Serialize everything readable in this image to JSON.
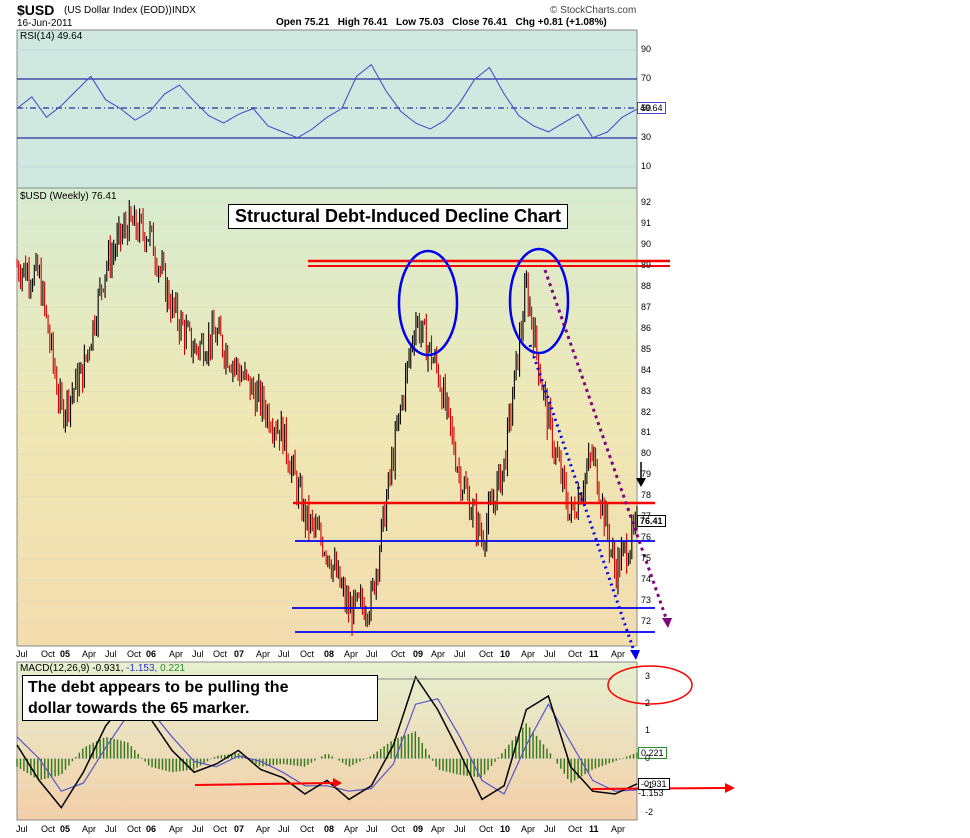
{
  "header": {
    "symbol": "$USD",
    "name": "(US Dollar Index (EOD))",
    "exchange": "INDX",
    "date": "16-Jun-2011",
    "ohlc": "Open 75.21   High 76.41   Low 75.03   Close 76.41   Chg +0.81 (+1.08%)",
    "brand": "© StockCharts.com"
  },
  "rsi_panel": {
    "label": "RSI(14) 49.64",
    "value_box": "49.64",
    "ticks": [
      "90",
      "70",
      "50",
      "30",
      "10"
    ]
  },
  "price_panel": {
    "label": "$USD (Weekly) 76.41",
    "title": "Structural Debt-Induced Decline Chart",
    "price_box": "76.41",
    "ticks": [
      "92",
      "91",
      "90",
      "89",
      "88",
      "87",
      "86",
      "85",
      "84",
      "83",
      "82",
      "81",
      "80",
      "79",
      "78",
      "77",
      "76",
      "75",
      "74",
      "73",
      "72"
    ]
  },
  "macd_panel": {
    "label": "MACD(12,26,9) -0.931, -1.153, 0.221",
    "label_parts": [
      "MACD(12,26,9)",
      "-0.931,",
      "-1.153,",
      "0.221"
    ],
    "callout_line1": "The debt appears to be pulling the",
    "callout_line2": "dollar towards the 65 marker.",
    "ticks": [
      "3",
      "2",
      "1",
      "0",
      "-1",
      "-2"
    ],
    "value_boxes": [
      "0.221",
      "-0.931",
      "-1.153"
    ]
  },
  "x_axis": [
    "Jul",
    "Oct",
    "05",
    "Apr",
    "Jul",
    "Oct",
    "06",
    "Apr",
    "Jul",
    "Oct",
    "07",
    "Apr",
    "Jul",
    "Oct",
    "08",
    "Apr",
    "Jul",
    "Oct",
    "09",
    "Apr",
    "Jul",
    "Oct",
    "10",
    "Apr",
    "Jul",
    "Oct",
    "11",
    "Apr"
  ],
  "colors": {
    "rsi_bg": "#cfe8e0",
    "panel_bg": "#efe6b8",
    "red": "#ff0000",
    "blue": "#0000ee",
    "purple": "#800080",
    "rsi_line": "#4444cc"
  },
  "chart_data": [
    {
      "type": "line",
      "title": "RSI(14)",
      "ylim": [
        0,
        100
      ],
      "reference_lines": [
        70,
        50,
        30
      ],
      "series": [
        {
          "name": "RSI(14)",
          "values": [
            50,
            58,
            44,
            52,
            62,
            72,
            56,
            50,
            42,
            48,
            60,
            66,
            55,
            45,
            40,
            46,
            50,
            38,
            34,
            30,
            36,
            44,
            50,
            72,
            80,
            62,
            48,
            40,
            36,
            42,
            54,
            70,
            78,
            60,
            45,
            38,
            34,
            40,
            46,
            30,
            34,
            44,
            49.64
          ]
        }
      ],
      "last_value": 49.64
    },
    {
      "type": "line",
      "title": "$USD (Weekly) 76.41",
      "x": [
        "Jul 04",
        "Oct 04",
        "Jan 05",
        "Apr 05",
        "Jul 05",
        "Oct 05",
        "Jan 06",
        "Apr 06",
        "Jul 06",
        "Oct 06",
        "Jan 07",
        "Apr 07",
        "Jul 07",
        "Oct 07",
        "Jan 08",
        "Apr 08",
        "Jul 08",
        "Oct 08",
        "Jan 09",
        "Apr 09",
        "Jul 09",
        "Oct 09",
        "Jan 10",
        "Apr 10",
        "Jul 10",
        "Oct 10",
        "Jan 11",
        "Apr 11",
        "Jun 11"
      ],
      "series": [
        {
          "name": "$USD (Weekly)",
          "values": [
            89,
            88.5,
            82,
            84,
            89,
            91,
            90.5,
            87,
            85,
            85.7,
            84,
            82.5,
            81,
            77,
            75.5,
            72.5,
            73,
            80,
            86.5,
            84,
            79,
            76,
            79.5,
            88,
            81.5,
            77,
            80,
            74.5,
            76.41
          ]
        }
      ],
      "ylim": [
        71.4,
        92.4
      ],
      "horizontal_lines": [
        89.3,
        89.0,
        77.3,
        76.0,
        72.6,
        71.6
      ],
      "last_value": 76.41
    },
    {
      "type": "line",
      "title": "MACD(12,26,9)",
      "ylim": [
        -2.3,
        3.5
      ],
      "series": [
        {
          "name": "MACD",
          "values": [
            0.5,
            -0.8,
            -1.8,
            -0.5,
            1.2,
            2.2,
            1.5,
            0.3,
            -0.5,
            -0.2,
            0.3,
            -0.4,
            -0.7,
            -1.3,
            -0.8,
            -1.5,
            -1.0,
            0.5,
            3.0,
            1.8,
            0.2,
            -1.5,
            -1.0,
            1.8,
            2.3,
            -0.3,
            -1.2,
            -1.3,
            -0.931
          ]
        },
        {
          "name": "Signal",
          "values": [
            0.8,
            0.0,
            -1.2,
            -0.9,
            0.4,
            1.6,
            1.8,
            0.8,
            -0.1,
            -0.3,
            0.1,
            -0.1,
            -0.5,
            -1.0,
            -1.0,
            -1.2,
            -1.1,
            -0.2,
            2.0,
            2.2,
            0.8,
            -0.8,
            -1.3,
            0.5,
            2.0,
            0.6,
            -0.8,
            -1.2,
            -1.153
          ]
        }
      ],
      "histogram_last": 0.221
    }
  ]
}
